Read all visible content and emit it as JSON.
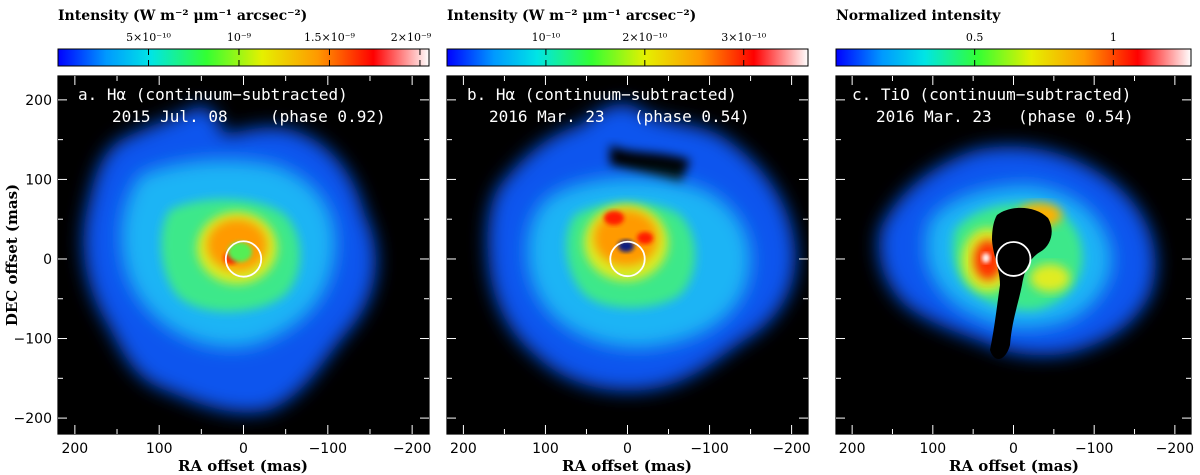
{
  "colors": {
    "background": "#000000",
    "circle": "#ffffff"
  },
  "chart_data": [
    {
      "type": "heatmap",
      "panel_label": "a. Hα (continuum−subtracted)",
      "date_line": "2015 Jul. 08",
      "phase_text": "(phase 0.92)",
      "colorbar": {
        "title": "Intensity (W m⁻² μm⁻¹ arcsec⁻²)",
        "ticks": [
          "5×10⁻¹⁰",
          "10⁻⁹",
          "1.5×10⁻⁹",
          "2×10⁻⁹"
        ],
        "tick_values": [
          5e-10,
          1e-09,
          1.5e-09,
          2e-09
        ],
        "range": [
          0,
          2.05e-09
        ]
      },
      "xlabel": "RA offset (mas)",
      "ylabel": "DEC offset (mas)",
      "xlim": [
        220,
        -220
      ],
      "ylim": [
        -220,
        230
      ],
      "xticks": [
        200,
        100,
        0,
        -100,
        -200
      ],
      "yticks": [
        200,
        100,
        0,
        -100,
        -200
      ],
      "stellar_disk_radius": 21
    },
    {
      "type": "heatmap",
      "panel_label": "b. Hα (continuum−subtracted)",
      "date_line": "2016 Mar. 23",
      "phase_text": "(phase 0.54)",
      "colorbar": {
        "title": "Intensity (W m⁻² μm⁻¹ arcsec⁻²)",
        "ticks": [
          "10⁻¹⁰",
          "2×10⁻¹⁰",
          "3×10⁻¹⁰"
        ],
        "tick_values": [
          1e-10,
          2e-10,
          3e-10
        ],
        "range": [
          0,
          3.65e-10
        ]
      },
      "xlabel": "RA offset (mas)",
      "xlim": [
        220,
        -220
      ],
      "ylim": [
        -220,
        230
      ],
      "xticks": [
        200,
        100,
        0,
        -100,
        -200
      ],
      "yticks": [
        200,
        100,
        0,
        -100,
        -200
      ],
      "stellar_disk_radius": 21
    },
    {
      "type": "heatmap",
      "panel_label": "c. TiO (continuum−subtracted)",
      "date_line": "2016 Mar. 23",
      "phase_text": "(phase 0.54)",
      "colorbar": {
        "title": "Normalized intensity",
        "ticks": [
          "0.5",
          "1"
        ],
        "tick_values": [
          0.5,
          1
        ],
        "range": [
          0,
          1.28
        ]
      },
      "xlabel": "RA offset (mas)",
      "xlim": [
        220,
        -220
      ],
      "ylim": [
        -220,
        230
      ],
      "xticks": [
        200,
        100,
        0,
        -100,
        -200
      ],
      "yticks": [
        200,
        100,
        0,
        -100,
        -200
      ],
      "stellar_disk_radius": 21
    }
  ]
}
